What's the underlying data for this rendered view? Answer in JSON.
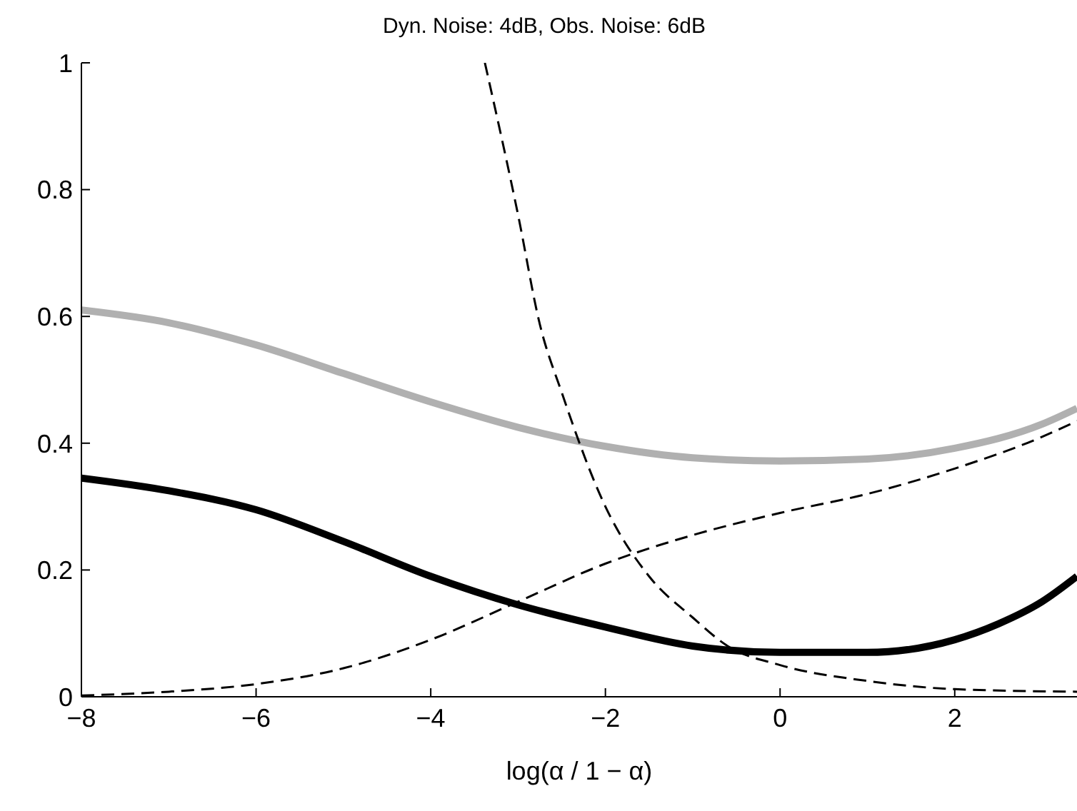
{
  "chart_data": {
    "type": "line",
    "title": "Dyn. Noise: 4dB, Obs. Noise: 6dB",
    "xlabel": "log(α / 1 − α)",
    "xlim": [
      -8,
      3.4
    ],
    "xticks": [
      -8,
      -6,
      -4,
      -2,
      0,
      2
    ],
    "ylim": [
      0,
      1
    ],
    "yticks": [
      0,
      0.2,
      0.4,
      0.6,
      0.8,
      1
    ],
    "series": [
      {
        "color": "#b0b0b0",
        "line_style": "solid",
        "x": [
          -8,
          -7,
          -6,
          -5,
          -4,
          -3,
          -2,
          -1,
          0,
          1,
          2,
          3,
          3.4
        ],
        "values": [
          0.61,
          0.59,
          0.555,
          0.51,
          0.465,
          0.425,
          0.395,
          0.377,
          0.372,
          0.375,
          0.392,
          0.43,
          0.455
        ]
      },
      {
        "color": "#000000",
        "line_style": "solid",
        "x": [
          -8,
          -7,
          -6,
          -5,
          -4,
          -3,
          -2,
          -1,
          0,
          1,
          2,
          2.5,
          3,
          3.4
        ],
        "values": [
          0.345,
          0.325,
          0.295,
          0.245,
          0.19,
          0.145,
          0.11,
          0.08,
          0.07,
          0.07,
          0.09,
          0.115,
          0.15,
          0.19
        ]
      },
      {
        "color": "#000000",
        "line_style": "dashed",
        "x": [
          -8,
          -7,
          -6,
          -5,
          -4,
          -3,
          -2,
          -1,
          0,
          1,
          2,
          3,
          3.4
        ],
        "values": [
          0.002,
          0.008,
          0.02,
          0.045,
          0.09,
          0.15,
          0.21,
          0.255,
          0.29,
          0.32,
          0.36,
          0.41,
          0.435
        ]
      },
      {
        "color": "#000000",
        "line_style": "dashed",
        "x": [
          -3.38,
          -3,
          -2.75,
          -2.5,
          -2,
          -1.5,
          -1,
          -0.6,
          0,
          1,
          2,
          3.4
        ],
        "values": [
          1,
          0.76,
          0.587,
          0.48,
          0.3,
          0.19,
          0.125,
          0.08,
          0.05,
          0.025,
          0.012,
          0.008
        ]
      }
    ]
  }
}
